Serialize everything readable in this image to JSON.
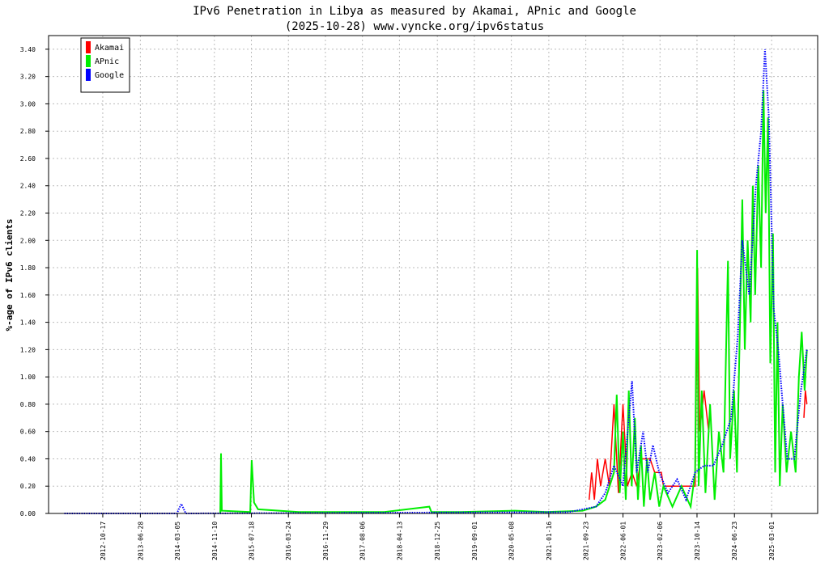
{
  "chart_data": {
    "type": "line",
    "title": "IPv6 Penetration in Libya as measured by Akamai, APnic and Google",
    "subtitle": "(2025-10-28) www.vyncke.org/ipv6status",
    "y_label": "%-age of IPv6 clients",
    "xlim": [
      "2011-10-17",
      "2026-01-06"
    ],
    "xticks": [
      "2012-10-17",
      "2013-06-28",
      "2014-03-05",
      "2014-11-10",
      "2015-07-18",
      "2016-03-24",
      "2016-11-29",
      "2017-08-06",
      "2018-04-13",
      "2018-12-25",
      "2019-09-01",
      "2020-05-08",
      "2021-01-16",
      "2021-09-23",
      "2022-06-01",
      "2023-02-06",
      "2023-10-14",
      "2024-06-23",
      "2025-03-01"
    ],
    "ylim": [
      0,
      3.5
    ],
    "yticks": [
      {
        "value": 0,
        "label": "0.00"
      },
      {
        "value": 0.2,
        "label": "0.20"
      },
      {
        "value": 0.4,
        "label": "0.40"
      },
      {
        "value": 0.6,
        "label": "0.60"
      },
      {
        "value": 0.8,
        "label": "0.80"
      },
      {
        "value": 1,
        "label": "1.00"
      },
      {
        "value": 1.2,
        "label": "1.20"
      },
      {
        "value": 1.4,
        "label": "1.40"
      },
      {
        "value": 1.6,
        "label": "1.60"
      },
      {
        "value": 1.8,
        "label": "1.80"
      },
      {
        "value": 2,
        "label": "2.00"
      },
      {
        "value": 2.2,
        "label": "2.20"
      },
      {
        "value": 2.4,
        "label": "2.40"
      },
      {
        "value": 2.6,
        "label": "2.60"
      },
      {
        "value": 2.8,
        "label": "2.80"
      },
      {
        "value": 3,
        "label": "3.00"
      },
      {
        "value": 3.2,
        "label": "3.20"
      },
      {
        "value": 3.4,
        "label": "3.40"
      }
    ],
    "grid": true,
    "legend": "top-left",
    "series": [
      {
        "name": "Akamai",
        "color": "#ff0000",
        "style": "solid",
        "x": [
          "2021-10-15",
          "2021-11-01",
          "2021-11-20",
          "2021-12-10",
          "2022-01-01",
          "2022-02-01",
          "2022-03-01",
          "2022-04-01",
          "2022-05-01",
          "2022-06-01",
          "2022-07-01",
          "2022-08-01",
          "2022-09-01",
          "2022-10-01",
          "2022-12-01",
          "2023-01-01",
          "2023-02-15",
          "2023-03-01",
          "2023-10-01",
          "2023-10-18",
          "2023-11-01",
          "2023-12-01",
          "2024-01-01",
          "2024-06-01",
          "2025-10-05",
          "2025-10-15",
          "2025-10-25"
        ],
        "values": [
          0.1,
          0.3,
          0.1,
          0.4,
          0.2,
          0.4,
          0.2,
          0.8,
          0.15,
          0.8,
          0.2,
          0.3,
          0.2,
          0.4,
          0.4,
          0.3,
          0.3,
          0.2,
          0.2,
          1.8,
          0.6,
          0.9,
          0.6,
          null,
          0.7,
          0.9,
          0.8
        ]
      },
      {
        "name": "APnic",
        "color": "#00ee00",
        "style": "solid",
        "x": [
          "2014-12-20",
          "2014-12-25",
          "2014-12-30",
          "2015-07-10",
          "2015-07-20",
          "2015-08-05",
          "2015-09-01",
          "2016-06-01",
          "2017-01-01",
          "2018-01-01",
          "2018-11-01",
          "2018-11-15",
          "2019-06-01",
          "2020-06-01",
          "2021-01-01",
          "2021-09-01",
          "2021-12-01",
          "2022-02-01",
          "2022-04-01",
          "2022-04-20",
          "2022-05-10",
          "2022-06-01",
          "2022-06-20",
          "2022-07-10",
          "2022-07-30",
          "2022-08-20",
          "2022-09-10",
          "2022-10-01",
          "2022-10-20",
          "2022-11-10",
          "2022-12-01",
          "2023-01-01",
          "2023-02-01",
          "2023-03-01",
          "2023-05-01",
          "2023-07-01",
          "2023-09-01",
          "2023-10-01",
          "2023-10-15",
          "2023-10-25",
          "2023-11-15",
          "2023-12-10",
          "2024-01-10",
          "2024-02-10",
          "2024-03-10",
          "2024-04-10",
          "2024-05-10",
          "2024-05-25",
          "2024-06-20",
          "2024-07-10",
          "2024-08-01",
          "2024-08-15",
          "2024-09-01",
          "2024-09-20",
          "2024-10-10",
          "2024-10-25",
          "2024-11-10",
          "2024-12-01",
          "2024-12-20",
          "2025-01-05",
          "2025-01-20",
          "2025-02-05",
          "2025-02-20",
          "2025-03-10",
          "2025-03-25",
          "2025-04-10",
          "2025-04-25",
          "2025-05-15",
          "2025-06-10",
          "2025-07-10",
          "2025-08-10",
          "2025-09-01",
          "2025-09-20",
          "2025-10-10",
          "2025-10-25"
        ],
        "values": [
          0,
          0.44,
          0.02,
          0.01,
          0.39,
          0.08,
          0.03,
          0.01,
          0.01,
          0.01,
          0.05,
          0.01,
          0.01,
          0.02,
          0.01,
          0.02,
          0.05,
          0.1,
          0.3,
          0.87,
          0.15,
          0.6,
          0.1,
          0.9,
          0.2,
          0.7,
          0.1,
          0.5,
          0.05,
          0.4,
          0.1,
          0.3,
          0.05,
          0.2,
          0.05,
          0.2,
          0.05,
          0.3,
          1.93,
          0.2,
          0.9,
          0.15,
          0.8,
          0.1,
          0.6,
          0.3,
          1.85,
          0.4,
          0.9,
          0.3,
          1.5,
          2.3,
          1.2,
          2.0,
          1.4,
          2.4,
          1.6,
          2.55,
          1.8,
          3.1,
          2.2,
          2.9,
          1.1,
          2.05,
          0.3,
          1.4,
          0.2,
          0.8,
          0.3,
          0.6,
          0.3,
          1.0,
          1.33,
          0.9,
          1.2
        ]
      },
      {
        "name": "Google",
        "color": "#0000ff",
        "style": "dotted",
        "x": [
          "2012-02-01",
          "2014-03-01",
          "2014-04-01",
          "2014-05-01",
          "2021-06-01",
          "2021-12-01",
          "2022-02-01",
          "2022-04-01",
          "2022-06-01",
          "2022-08-01",
          "2022-09-01",
          "2022-10-15",
          "2022-11-15",
          "2022-12-20",
          "2023-02-01",
          "2023-04-01",
          "2023-06-01",
          "2023-08-01",
          "2023-10-01",
          "2023-12-01",
          "2024-02-01",
          "2024-04-01",
          "2024-06-01",
          "2024-07-15",
          "2024-08-15",
          "2024-10-01",
          "2024-11-15",
          "2024-12-20",
          "2025-01-15",
          "2025-02-10",
          "2025-03-15",
          "2025-04-15",
          "2025-05-15",
          "2025-06-15",
          "2025-08-01",
          "2025-09-15",
          "2025-10-25"
        ],
        "values": [
          0,
          0,
          0.07,
          0,
          0.01,
          0.05,
          0.15,
          0.35,
          0.2,
          0.97,
          0.3,
          0.6,
          0.3,
          0.5,
          0.3,
          0.15,
          0.25,
          0.1,
          0.3,
          0.35,
          0.35,
          0.5,
          0.7,
          1.3,
          2.0,
          1.6,
          2.4,
          2.8,
          3.4,
          2.9,
          1.5,
          1.2,
          0.8,
          0.4,
          0.4,
          0.9,
          1.2
        ]
      }
    ]
  }
}
